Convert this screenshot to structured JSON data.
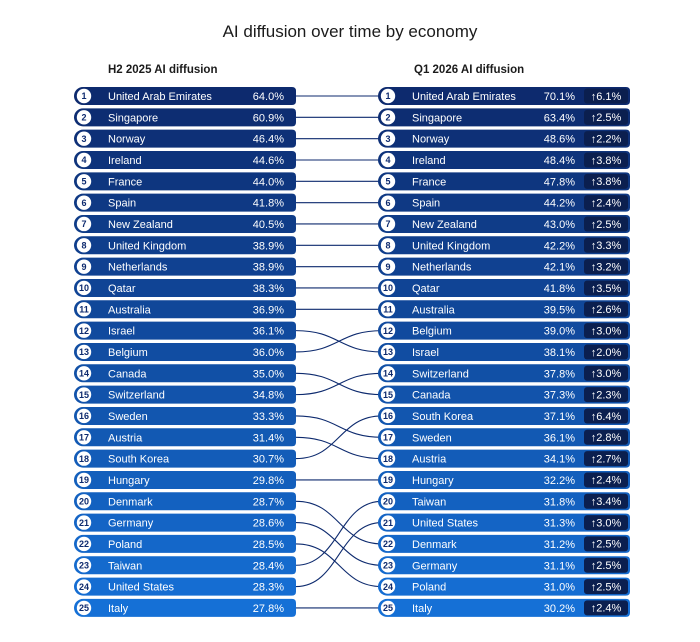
{
  "chart_data": {
    "type": "table",
    "title": "AI diffusion over time by economy",
    "left_title": "H2 2025 AI diffusion",
    "right_title": "Q1 2026 AI diffusion",
    "left": [
      {
        "rank": 1,
        "country": "United Arab Emirates",
        "value": "64.0%"
      },
      {
        "rank": 2,
        "country": "Singapore",
        "value": "60.9%"
      },
      {
        "rank": 3,
        "country": "Norway",
        "value": "46.4%"
      },
      {
        "rank": 4,
        "country": "Ireland",
        "value": "44.6%"
      },
      {
        "rank": 5,
        "country": "France",
        "value": "44.0%"
      },
      {
        "rank": 6,
        "country": "Spain",
        "value": "41.8%"
      },
      {
        "rank": 7,
        "country": "New Zealand",
        "value": "40.5%"
      },
      {
        "rank": 8,
        "country": "United Kingdom",
        "value": "38.9%"
      },
      {
        "rank": 9,
        "country": "Netherlands",
        "value": "38.9%"
      },
      {
        "rank": 10,
        "country": "Qatar",
        "value": "38.3%"
      },
      {
        "rank": 11,
        "country": "Australia",
        "value": "36.9%"
      },
      {
        "rank": 12,
        "country": "Israel",
        "value": "36.1%"
      },
      {
        "rank": 13,
        "country": "Belgium",
        "value": "36.0%"
      },
      {
        "rank": 14,
        "country": "Canada",
        "value": "35.0%"
      },
      {
        "rank": 15,
        "country": "Switzerland",
        "value": "34.8%"
      },
      {
        "rank": 16,
        "country": "Sweden",
        "value": "33.3%"
      },
      {
        "rank": 17,
        "country": "Austria",
        "value": "31.4%"
      },
      {
        "rank": 18,
        "country": "South Korea",
        "value": "30.7%"
      },
      {
        "rank": 19,
        "country": "Hungary",
        "value": "29.8%"
      },
      {
        "rank": 20,
        "country": "Denmark",
        "value": "28.7%"
      },
      {
        "rank": 21,
        "country": "Germany",
        "value": "28.6%"
      },
      {
        "rank": 22,
        "country": "Poland",
        "value": "28.5%"
      },
      {
        "rank": 23,
        "country": "Taiwan",
        "value": "28.4%"
      },
      {
        "rank": 24,
        "country": "United States",
        "value": "28.3%"
      },
      {
        "rank": 25,
        "country": "Italy",
        "value": "27.8%"
      }
    ],
    "right": [
      {
        "rank": 1,
        "country": "United Arab Emirates",
        "value": "70.1%",
        "change": "6.1%"
      },
      {
        "rank": 2,
        "country": "Singapore",
        "value": "63.4%",
        "change": "2.5%"
      },
      {
        "rank": 3,
        "country": "Norway",
        "value": "48.6%",
        "change": "2.2%"
      },
      {
        "rank": 4,
        "country": "Ireland",
        "value": "48.4%",
        "change": "3.8%"
      },
      {
        "rank": 5,
        "country": "France",
        "value": "47.8%",
        "change": "3.8%"
      },
      {
        "rank": 6,
        "country": "Spain",
        "value": "44.2%",
        "change": "2.4%"
      },
      {
        "rank": 7,
        "country": "New Zealand",
        "value": "43.0%",
        "change": "2.5%"
      },
      {
        "rank": 8,
        "country": "United Kingdom",
        "value": "42.2%",
        "change": "3.3%"
      },
      {
        "rank": 9,
        "country": "Netherlands",
        "value": "42.1%",
        "change": "3.2%"
      },
      {
        "rank": 10,
        "country": "Qatar",
        "value": "41.8%",
        "change": "3.5%"
      },
      {
        "rank": 11,
        "country": "Australia",
        "value": "39.5%",
        "change": "2.6%"
      },
      {
        "rank": 12,
        "country": "Belgium",
        "value": "39.0%",
        "change": "3.0%"
      },
      {
        "rank": 13,
        "country": "Israel",
        "value": "38.1%",
        "change": "2.0%"
      },
      {
        "rank": 14,
        "country": "Switzerland",
        "value": "37.8%",
        "change": "3.0%"
      },
      {
        "rank": 15,
        "country": "Canada",
        "value": "37.3%",
        "change": "2.3%"
      },
      {
        "rank": 16,
        "country": "South Korea",
        "value": "37.1%",
        "change": "6.4%"
      },
      {
        "rank": 17,
        "country": "Sweden",
        "value": "36.1%",
        "change": "2.8%"
      },
      {
        "rank": 18,
        "country": "Austria",
        "value": "34.1%",
        "change": "2.7%"
      },
      {
        "rank": 19,
        "country": "Hungary",
        "value": "32.2%",
        "change": "2.4%"
      },
      {
        "rank": 20,
        "country": "Taiwan",
        "value": "31.8%",
        "change": "3.4%"
      },
      {
        "rank": 21,
        "country": "United States",
        "value": "31.3%",
        "change": "3.0%"
      },
      {
        "rank": 22,
        "country": "Denmark",
        "value": "31.2%",
        "change": "2.5%"
      },
      {
        "rank": 23,
        "country": "Germany",
        "value": "31.1%",
        "change": "2.5%"
      },
      {
        "rank": 24,
        "country": "Poland",
        "value": "31.0%",
        "change": "2.5%"
      },
      {
        "rank": 25,
        "country": "Italy",
        "value": "30.2%",
        "change": "2.4%"
      }
    ],
    "arrow_glyph": "↑",
    "colors": {
      "row_gradient": [
        "#0d2a6e",
        "#1570d6"
      ],
      "change_badge": "#0b1f4f",
      "connector": "#0d2a6e",
      "text": "#ffffff"
    }
  }
}
